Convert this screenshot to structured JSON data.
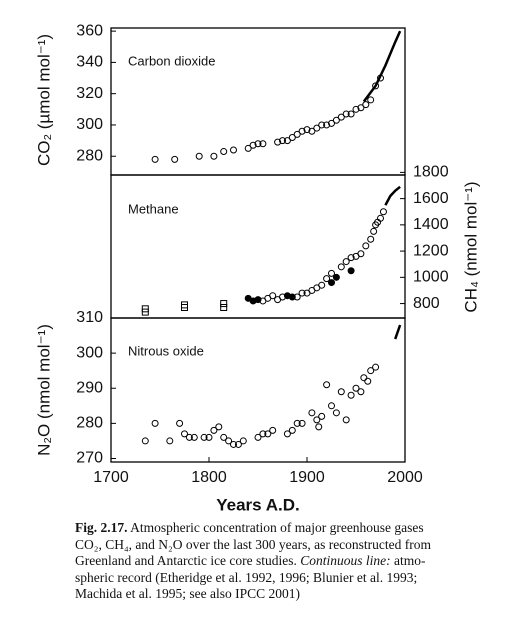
{
  "chart_data": [
    {
      "type": "scatter",
      "label": "Carbon dioxide",
      "ylabel": "CO₂ (µmol mol⁻¹)",
      "axis_side": "left",
      "color": "#000000",
      "xlim": [
        1700,
        2000
      ],
      "ylim": [
        268,
        362
      ],
      "yticks": [
        280,
        300,
        320,
        340,
        360
      ],
      "series": [
        {
          "marker": "open-circle",
          "x": [
            1745,
            1765,
            1790,
            1805,
            1815,
            1825,
            1840,
            1845,
            1850,
            1855,
            1870,
            1875,
            1880,
            1885,
            1890,
            1895,
            1900,
            1905,
            1910,
            1915,
            1920,
            1925,
            1930,
            1935,
            1940,
            1945,
            1950,
            1955,
            1960,
            1965,
            1970,
            1975
          ],
          "values": [
            278,
            278,
            280,
            280,
            283,
            284,
            285,
            287,
            288,
            288,
            289,
            290,
            290,
            292,
            294,
            296,
            297,
            296,
            298,
            300,
            300,
            301,
            303,
            305,
            307,
            307,
            310,
            311,
            313,
            316,
            325,
            330
          ]
        },
        {
          "marker": "line",
          "x": [
            1958,
            1970,
            1980,
            1990,
            1995
          ],
          "values": [
            315,
            325,
            338,
            353,
            360
          ]
        }
      ]
    },
    {
      "type": "scatter",
      "label": "Methane",
      "ylabel": "CH₄ (nmol mol⁻¹)",
      "axis_side": "right",
      "color": "#000000",
      "xlim": [
        1700,
        2000
      ],
      "ylim": [
        690,
        1780
      ],
      "yticks": [
        800,
        1000,
        1200,
        1400,
        1600,
        1800
      ],
      "series": [
        {
          "marker": "open-square",
          "x": [
            1735,
            1735,
            1775,
            1775,
            1815,
            1815
          ],
          "values": [
            735,
            760,
            770,
            790,
            770,
            800
          ]
        },
        {
          "marker": "filled-circle",
          "x": [
            1840,
            1845,
            1850,
            1880,
            1885,
            1925,
            1930,
            1945
          ],
          "values": [
            840,
            820,
            830,
            860,
            850,
            960,
            1000,
            1050
          ]
        },
        {
          "marker": "open-circle",
          "x": [
            1855,
            1860,
            1865,
            1870,
            1875,
            1890,
            1895,
            1900,
            1905,
            1910,
            1915,
            1920,
            1925,
            1935,
            1940,
            1945,
            1950,
            1955,
            1960,
            1965,
            1968,
            1970,
            1972,
            1975,
            1978
          ],
          "values": [
            820,
            840,
            860,
            830,
            850,
            850,
            880,
            880,
            900,
            920,
            940,
            990,
            1030,
            1080,
            1120,
            1150,
            1160,
            1180,
            1240,
            1290,
            1350,
            1400,
            1420,
            1450,
            1500
          ]
        },
        {
          "marker": "line",
          "x": [
            1980,
            1985,
            1990,
            1995
          ],
          "values": [
            1550,
            1620,
            1660,
            1690
          ]
        }
      ]
    },
    {
      "type": "scatter",
      "label": "Nitrous oxide",
      "ylabel": "N₂O (nmol mol⁻¹)",
      "axis_side": "left",
      "color": "#000000",
      "xlim": [
        1700,
        2000
      ],
      "ylim": [
        269,
        310
      ],
      "yticks": [
        270,
        280,
        290,
        300,
        310
      ],
      "xticks": [
        1700,
        1800,
        1900,
        2000
      ],
      "xlabel": "Years A.D.",
      "series": [
        {
          "marker": "open-circle",
          "x": [
            1735,
            1745,
            1760,
            1770,
            1775,
            1780,
            1785,
            1795,
            1800,
            1805,
            1810,
            1815,
            1820,
            1825,
            1830,
            1835,
            1850,
            1855,
            1860,
            1865,
            1880,
            1885,
            1890,
            1895,
            1905,
            1910,
            1912,
            1915,
            1920,
            1925,
            1930,
            1935,
            1940,
            1945,
            1950,
            1955,
            1958,
            1962,
            1965,
            1970
          ],
          "values": [
            275,
            280,
            275,
            280,
            277,
            276,
            276,
            276,
            276,
            278,
            279,
            276,
            275,
            274,
            274,
            275,
            276,
            277,
            277,
            278,
            277,
            278,
            280,
            280,
            283,
            281,
            279,
            282,
            291,
            285,
            283,
            289,
            281,
            288,
            290,
            289,
            293,
            292,
            295,
            296
          ]
        },
        {
          "marker": "line",
          "x": [
            1990,
            1995
          ],
          "values": [
            304,
            308
          ]
        }
      ]
    }
  ],
  "caption": {
    "label": "Fig. 2.17.",
    "lines": [
      "Atmospheric concentration of major greenhouse gases",
      "CO₂, CH₄, and N₂O over the last 300 years, as reconstructed from",
      "Greenland and Antarctic ice core studies.",
      "Continuous line:",
      "atmo-",
      "spheric record (Etheridge et al. 1992, 1996; Blunier et al. 1993;",
      "Machida et al. 1995; see also IPCC 2001)"
    ]
  }
}
